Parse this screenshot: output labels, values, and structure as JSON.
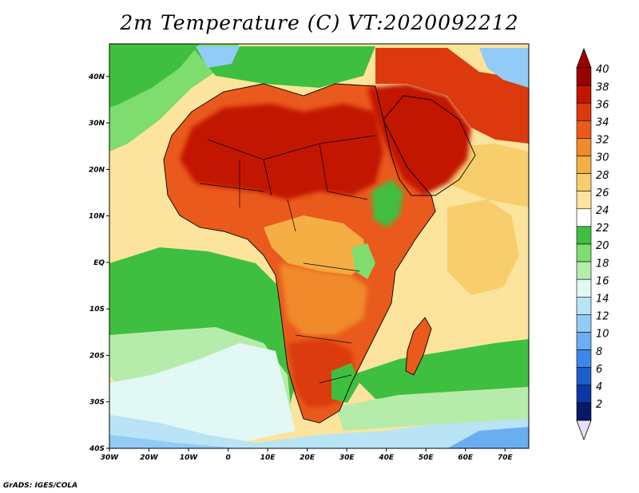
{
  "title": "2m Temperature (C) VT:2020092212",
  "credit": "GrADS: IGES/COLA",
  "map": {
    "variable": "2m Temperature",
    "units": "C",
    "region": "Africa",
    "lon_range": [
      -30,
      76
    ],
    "lat_range": [
      -40,
      47
    ]
  },
  "axes": {
    "lat_ticks": [
      {
        "value": 40,
        "label": "40N"
      },
      {
        "value": 30,
        "label": "30N"
      },
      {
        "value": 20,
        "label": "20N"
      },
      {
        "value": 10,
        "label": "10N"
      },
      {
        "value": 0,
        "label": "EQ"
      },
      {
        "value": -10,
        "label": "10S"
      },
      {
        "value": -20,
        "label": "20S"
      },
      {
        "value": -30,
        "label": "30S"
      },
      {
        "value": -40,
        "label": "40S"
      }
    ],
    "lon_ticks": [
      {
        "value": -30,
        "label": "30W"
      },
      {
        "value": -20,
        "label": "20W"
      },
      {
        "value": -10,
        "label": "10W"
      },
      {
        "value": 0,
        "label": "0"
      },
      {
        "value": 10,
        "label": "10E"
      },
      {
        "value": 20,
        "label": "20E"
      },
      {
        "value": 30,
        "label": "30E"
      },
      {
        "value": 40,
        "label": "40E"
      },
      {
        "value": 50,
        "label": "50E"
      },
      {
        "value": 60,
        "label": "60E"
      },
      {
        "value": 70,
        "label": "70E"
      }
    ]
  },
  "colorbar": {
    "labels": [
      "40",
      "38",
      "36",
      "34",
      "32",
      "30",
      "28",
      "26",
      "24",
      "22",
      "20",
      "18",
      "16",
      "14",
      "12",
      "10",
      "8",
      "6",
      "4",
      "2"
    ],
    "colors": [
      "#9a0000",
      "#c21500",
      "#dc3a0e",
      "#ea5a1c",
      "#f08a2a",
      "#f4ae44",
      "#f8cd6c",
      "#fce49c",
      "#ffffff",
      "#3fbf3f",
      "#7edd6e",
      "#b6ecab",
      "#e2f8f4",
      "#b8e4f6",
      "#92cbf6",
      "#6aaef2",
      "#3c88e8",
      "#1e5ec9",
      "#0c38a5",
      "#061a68"
    ],
    "top_color": "#9a0000",
    "bottom_color": "#e8e0ff"
  }
}
